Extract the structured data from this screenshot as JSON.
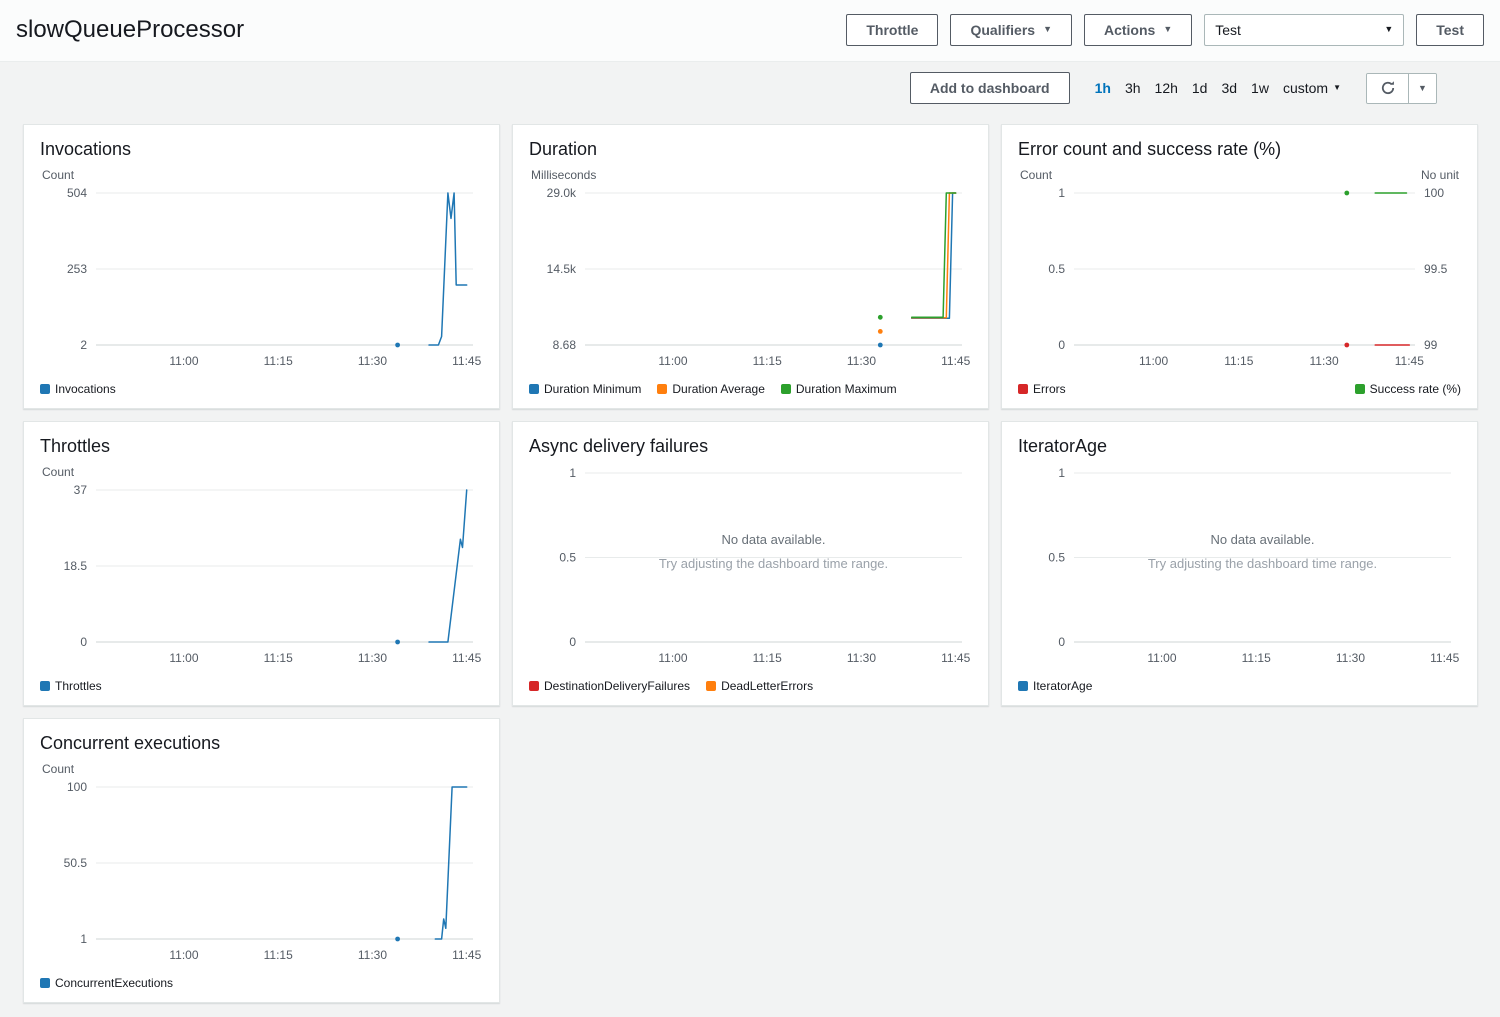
{
  "header": {
    "title": "slowQueueProcessor",
    "buttons": {
      "throttle": "Throttle",
      "qualifiers": "Qualifiers",
      "actions": "Actions",
      "test_select_value": "Test",
      "test_button": "Test"
    }
  },
  "toolbar": {
    "add_to_dashboard": "Add to dashboard",
    "ranges": [
      "1h",
      "3h",
      "12h",
      "1d",
      "3d",
      "1w"
    ],
    "selected_range": "1h",
    "custom_label": "custom"
  },
  "colors": {
    "blue": "#1f77b4",
    "orange": "#ff7f0e",
    "green": "#2ca02c",
    "red": "#d62728",
    "selected_link": "#0073bb"
  },
  "no_data": {
    "line1": "No data available.",
    "line2": "Try adjusting the dashboard time range."
  },
  "x_domain": [
    "10:46",
    "11:46"
  ],
  "x_ticks": [
    "11:00",
    "11:15",
    "11:30",
    "11:45"
  ],
  "chart_data": [
    {
      "id": "invocations",
      "type": "line",
      "title": "Invocations",
      "unit": "Count",
      "axis_left": {
        "min": 2,
        "max": 504,
        "labels": [
          "504",
          "253",
          "2"
        ]
      },
      "series": [
        {
          "name": "Invocations",
          "color": "#1f77b4",
          "axis": "left",
          "dots": [
            {
              "t": "11:34",
              "v": 2
            }
          ],
          "points": [
            {
              "t": "11:39",
              "v": 2
            },
            {
              "t": "11:40:30",
              "v": 2
            },
            {
              "t": "11:41",
              "v": 30
            },
            {
              "t": "11:42",
              "v": 504
            },
            {
              "t": "11:42:30",
              "v": 420
            },
            {
              "t": "11:43",
              "v": 504
            },
            {
              "t": "11:43:20",
              "v": 200
            },
            {
              "t": "11:45",
              "v": 200
            }
          ]
        }
      ],
      "legend": [
        {
          "label": "Invocations",
          "color": "#1f77b4"
        }
      ]
    },
    {
      "id": "duration",
      "type": "line",
      "title": "Duration",
      "unit": "Milliseconds",
      "axis_left": {
        "min": 8.68,
        "max": 29000,
        "labels": [
          "29.0k",
          "14.5k",
          "8.68"
        ]
      },
      "series": [
        {
          "name": "Duration Minimum",
          "color": "#1f77b4",
          "axis": "left",
          "dots": [
            {
              "t": "11:33",
              "v": 8.68
            }
          ],
          "points": [
            {
              "t": "11:38",
              "v": 5100
            },
            {
              "t": "11:44",
              "v": 5100
            },
            {
              "t": "11:44:30",
              "v": 29000
            },
            {
              "t": "11:45",
              "v": 29000
            }
          ]
        },
        {
          "name": "Duration Average",
          "color": "#ff7f0e",
          "axis": "left",
          "dots": [
            {
              "t": "11:33",
              "v": 2600
            }
          ],
          "points": [
            {
              "t": "11:38",
              "v": 5200
            },
            {
              "t": "11:43:30",
              "v": 5200
            },
            {
              "t": "11:44",
              "v": 29000
            },
            {
              "t": "11:45",
              "v": 29000
            }
          ]
        },
        {
          "name": "Duration Maximum",
          "color": "#2ca02c",
          "axis": "left",
          "dots": [
            {
              "t": "11:33",
              "v": 5300
            }
          ],
          "points": [
            {
              "t": "11:38",
              "v": 5300
            },
            {
              "t": "11:43",
              "v": 5300
            },
            {
              "t": "11:43:30",
              "v": 29000
            },
            {
              "t": "11:45",
              "v": 29000
            }
          ]
        }
      ],
      "legend": [
        {
          "label": "Duration Minimum",
          "color": "#1f77b4"
        },
        {
          "label": "Duration Average",
          "color": "#ff7f0e"
        },
        {
          "label": "Duration Maximum",
          "color": "#2ca02c"
        }
      ]
    },
    {
      "id": "errors-success-rate",
      "type": "line",
      "title": "Error count and success rate (%)",
      "unit": "Count",
      "unit_right": "No unit",
      "axis_left": {
        "min": 0,
        "max": 1,
        "labels": [
          "1",
          "0.5",
          "0"
        ]
      },
      "axis_right": {
        "min": 99,
        "max": 100,
        "labels": [
          "100",
          "99.5",
          "99"
        ]
      },
      "series": [
        {
          "name": "Errors",
          "color": "#d62728",
          "axis": "left",
          "dots": [
            {
              "t": "11:34",
              "v": 0
            }
          ],
          "points": [
            {
              "t": "11:39",
              "v": 0
            },
            {
              "t": "11:45",
              "v": 0
            }
          ]
        },
        {
          "name": "Success rate (%)",
          "color": "#2ca02c",
          "axis": "right",
          "dots": [
            {
              "t": "11:34",
              "v": 100
            }
          ],
          "points": [
            {
              "t": "11:39",
              "v": 100
            },
            {
              "t": "11:44:30",
              "v": 100
            }
          ]
        }
      ],
      "legend": [
        {
          "label": "Errors",
          "color": "#d62728"
        }
      ],
      "legend_right": [
        {
          "label": "Success rate (%)",
          "color": "#2ca02c"
        }
      ]
    },
    {
      "id": "throttles",
      "type": "line",
      "title": "Throttles",
      "unit": "Count",
      "axis_left": {
        "min": 0,
        "max": 37,
        "labels": [
          "37",
          "18.5",
          "0"
        ]
      },
      "series": [
        {
          "name": "Throttles",
          "color": "#1f77b4",
          "axis": "left",
          "dots": [
            {
              "t": "11:34",
              "v": 0
            }
          ],
          "points": [
            {
              "t": "11:39",
              "v": 0
            },
            {
              "t": "11:42",
              "v": 0
            },
            {
              "t": "11:44",
              "v": 25
            },
            {
              "t": "11:44:20",
              "v": 23
            },
            {
              "t": "11:45",
              "v": 37
            }
          ]
        }
      ],
      "legend": [
        {
          "label": "Throttles",
          "color": "#1f77b4"
        }
      ]
    },
    {
      "id": "async-delivery-failures",
      "type": "line",
      "title": "Async delivery failures",
      "no_data": true,
      "axis_left": {
        "min": 0,
        "max": 1,
        "labels": [
          "1",
          "0.5",
          "0"
        ]
      },
      "series": [],
      "legend": [
        {
          "label": "DestinationDeliveryFailures",
          "color": "#d62728"
        },
        {
          "label": "DeadLetterErrors",
          "color": "#ff7f0e"
        }
      ]
    },
    {
      "id": "iterator-age",
      "type": "line",
      "title": "IteratorAge",
      "no_data": true,
      "axis_left": {
        "min": 0,
        "max": 1,
        "labels": [
          "1",
          "0.5",
          "0"
        ]
      },
      "series": [],
      "legend": [
        {
          "label": "IteratorAge",
          "color": "#1f77b4"
        }
      ]
    },
    {
      "id": "concurrent-executions",
      "type": "line",
      "title": "Concurrent executions",
      "unit": "Count",
      "axis_left": {
        "min": 1,
        "max": 100,
        "labels": [
          "100",
          "50.5",
          "1"
        ]
      },
      "series": [
        {
          "name": "ConcurrentExecutions",
          "color": "#1f77b4",
          "axis": "left",
          "dots": [
            {
              "t": "11:34",
              "v": 1
            }
          ],
          "points": [
            {
              "t": "11:40",
              "v": 1
            },
            {
              "t": "11:41",
              "v": 1
            },
            {
              "t": "11:41:20",
              "v": 14
            },
            {
              "t": "11:41:40",
              "v": 8
            },
            {
              "t": "11:42:40",
              "v": 100
            },
            {
              "t": "11:45",
              "v": 100
            }
          ]
        }
      ],
      "legend": [
        {
          "label": "ConcurrentExecutions",
          "color": "#1f77b4"
        }
      ]
    }
  ]
}
